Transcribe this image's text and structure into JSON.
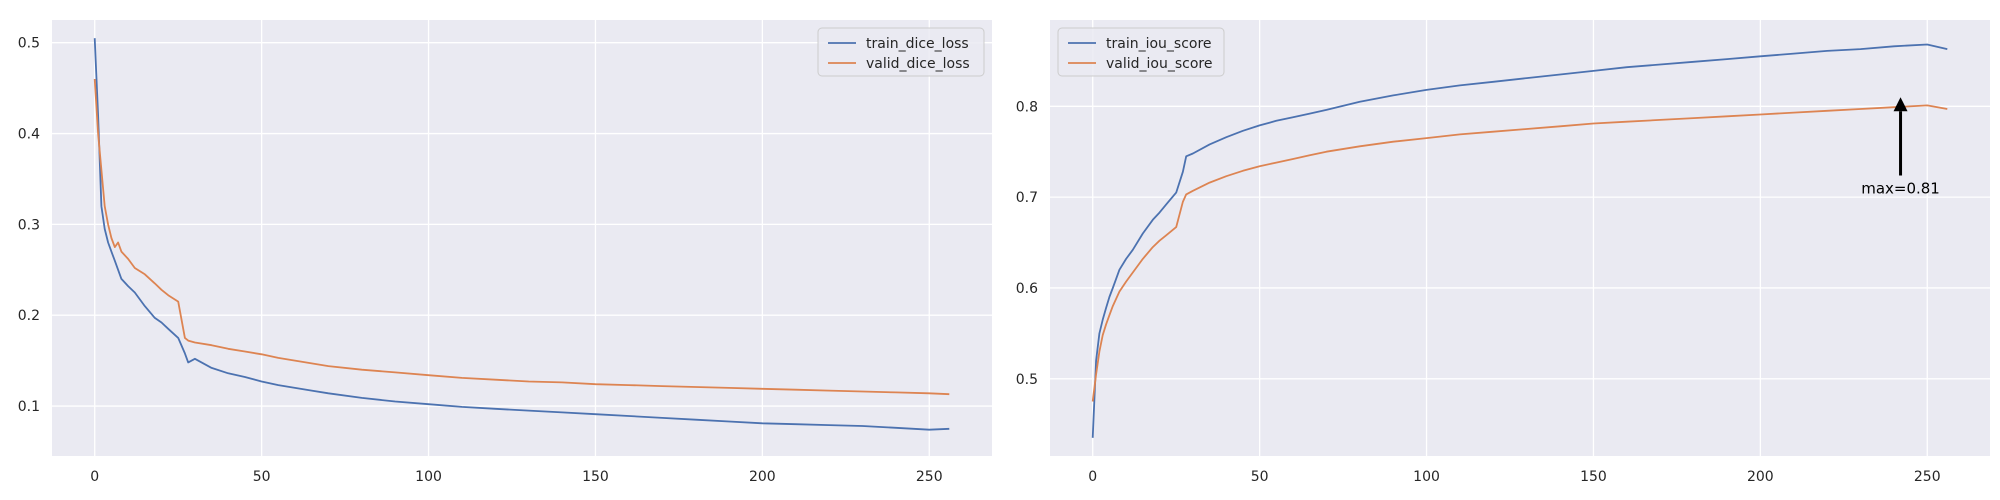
{
  "chart_data": [
    {
      "type": "line",
      "title": "",
      "xlabel": "",
      "ylabel": "",
      "xlim": [
        -12.8,
        268.8
      ],
      "ylim": [
        0.045,
        0.525
      ],
      "x_ticks": [
        0,
        50,
        100,
        150,
        200,
        250
      ],
      "y_ticks": [
        0.1,
        0.2,
        0.3,
        0.4,
        0.5
      ],
      "grid": true,
      "legend_position": "upper right",
      "series": [
        {
          "name": "train_dice_loss",
          "color": "#4c72b0",
          "x": [
            0,
            1,
            2,
            3,
            4,
            5,
            6,
            7,
            8,
            10,
            12,
            15,
            18,
            20,
            22,
            25,
            27,
            28,
            30,
            35,
            40,
            45,
            50,
            55,
            60,
            65,
            70,
            80,
            90,
            100,
            110,
            120,
            130,
            140,
            150,
            160,
            170,
            180,
            190,
            200,
            210,
            220,
            230,
            240,
            250,
            256
          ],
          "y": [
            0.505,
            0.42,
            0.32,
            0.295,
            0.28,
            0.27,
            0.26,
            0.25,
            0.24,
            0.232,
            0.225,
            0.21,
            0.197,
            0.192,
            0.185,
            0.175,
            0.158,
            0.148,
            0.152,
            0.142,
            0.136,
            0.132,
            0.127,
            0.123,
            0.12,
            0.117,
            0.114,
            0.109,
            0.105,
            0.102,
            0.099,
            0.097,
            0.095,
            0.093,
            0.091,
            0.089,
            0.087,
            0.085,
            0.083,
            0.081,
            0.08,
            0.079,
            0.078,
            0.076,
            0.074,
            0.075
          ]
        },
        {
          "name": "valid_dice_loss",
          "color": "#dd8452",
          "x": [
            0,
            1,
            2,
            3,
            4,
            5,
            6,
            7,
            8,
            10,
            12,
            15,
            18,
            20,
            22,
            25,
            27,
            28,
            30,
            35,
            40,
            45,
            50,
            55,
            60,
            65,
            70,
            80,
            90,
            100,
            110,
            120,
            130,
            140,
            150,
            160,
            170,
            180,
            190,
            200,
            210,
            220,
            230,
            240,
            250,
            256
          ],
          "y": [
            0.46,
            0.4,
            0.36,
            0.32,
            0.3,
            0.285,
            0.275,
            0.28,
            0.27,
            0.262,
            0.252,
            0.245,
            0.235,
            0.228,
            0.222,
            0.215,
            0.175,
            0.172,
            0.17,
            0.167,
            0.163,
            0.16,
            0.157,
            0.153,
            0.15,
            0.147,
            0.144,
            0.14,
            0.137,
            0.134,
            0.131,
            0.129,
            0.127,
            0.126,
            0.124,
            0.123,
            0.122,
            0.121,
            0.12,
            0.119,
            0.118,
            0.117,
            0.116,
            0.115,
            0.114,
            0.113
          ]
        }
      ]
    },
    {
      "type": "line",
      "title": "",
      "xlabel": "",
      "ylabel": "",
      "xlim": [
        -12.8,
        268.8
      ],
      "ylim": [
        0.415,
        0.895
      ],
      "x_ticks": [
        0,
        50,
        100,
        150,
        200,
        250
      ],
      "y_ticks": [
        0.5,
        0.6,
        0.7,
        0.8
      ],
      "grid": true,
      "legend_position": "upper left",
      "annotation": {
        "text": "max=0.81",
        "point_x": 242,
        "point_y": 0.81,
        "text_x": 242,
        "text_y": 0.715,
        "arrow": true
      },
      "series": [
        {
          "name": "train_iou_score",
          "color": "#4c72b0",
          "x": [
            0,
            1,
            2,
            3,
            4,
            5,
            6,
            7,
            8,
            10,
            12,
            15,
            18,
            20,
            22,
            25,
            27,
            28,
            30,
            35,
            40,
            45,
            50,
            55,
            60,
            65,
            70,
            80,
            90,
            100,
            110,
            120,
            130,
            140,
            150,
            160,
            170,
            180,
            190,
            200,
            210,
            220,
            230,
            240,
            250,
            256
          ],
          "y": [
            0.435,
            0.52,
            0.55,
            0.565,
            0.578,
            0.59,
            0.6,
            0.61,
            0.62,
            0.632,
            0.642,
            0.66,
            0.675,
            0.683,
            0.692,
            0.705,
            0.728,
            0.745,
            0.748,
            0.758,
            0.766,
            0.773,
            0.779,
            0.784,
            0.788,
            0.792,
            0.796,
            0.805,
            0.812,
            0.818,
            0.823,
            0.827,
            0.831,
            0.835,
            0.839,
            0.843,
            0.846,
            0.849,
            0.852,
            0.855,
            0.858,
            0.861,
            0.863,
            0.866,
            0.868,
            0.863
          ]
        },
        {
          "name": "valid_iou_score",
          "color": "#dd8452",
          "x": [
            0,
            1,
            2,
            3,
            4,
            5,
            6,
            7,
            8,
            10,
            12,
            15,
            18,
            20,
            22,
            25,
            27,
            28,
            30,
            35,
            40,
            45,
            50,
            55,
            60,
            65,
            70,
            80,
            90,
            100,
            110,
            120,
            130,
            140,
            150,
            160,
            170,
            180,
            190,
            200,
            210,
            220,
            230,
            240,
            250,
            256
          ],
          "y": [
            0.475,
            0.505,
            0.53,
            0.548,
            0.56,
            0.57,
            0.58,
            0.588,
            0.596,
            0.607,
            0.617,
            0.632,
            0.645,
            0.652,
            0.658,
            0.667,
            0.695,
            0.703,
            0.707,
            0.716,
            0.723,
            0.729,
            0.734,
            0.738,
            0.742,
            0.746,
            0.75,
            0.756,
            0.761,
            0.765,
            0.769,
            0.772,
            0.775,
            0.778,
            0.781,
            0.783,
            0.785,
            0.787,
            0.789,
            0.791,
            0.793,
            0.795,
            0.797,
            0.799,
            0.801,
            0.797
          ]
        }
      ]
    }
  ]
}
